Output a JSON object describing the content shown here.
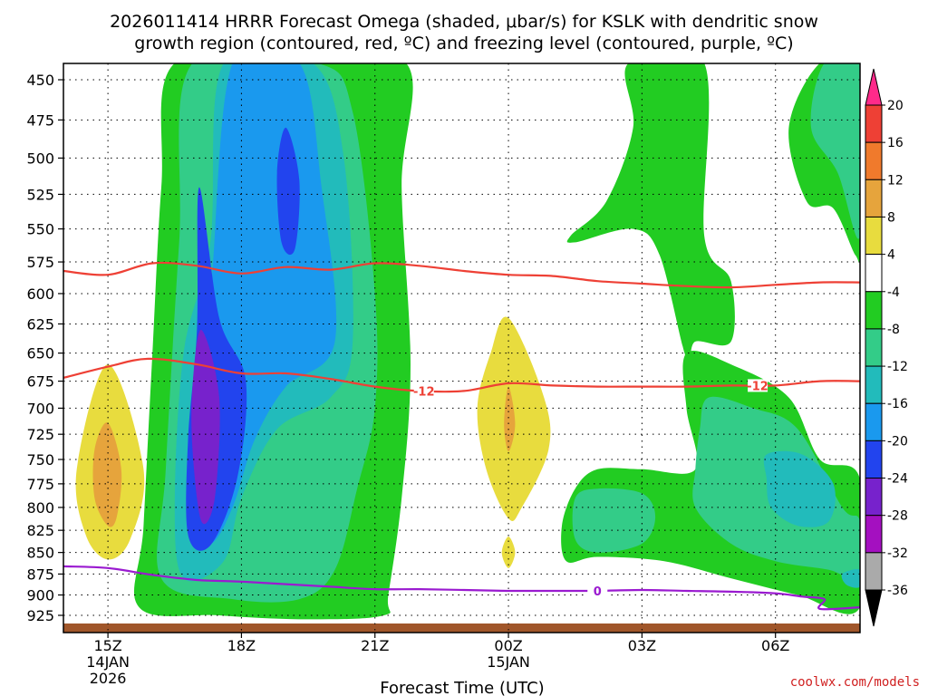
{
  "title_line1": "2026011414 HRRR Forecast Omega (shaded, μbar/s) for KSLK with dendritic snow",
  "title_line2": "growth region (contoured, red, ºC) and freezing level (contoured, purple, ºC)",
  "credit": "coolwx.com/models",
  "chart_data": {
    "type": "time-height contour",
    "xlabel": "Forecast Time (UTC)",
    "x_ticks": [
      {
        "label": "15Z",
        "sub1": "14JAN",
        "sub2": "2026",
        "hour": 15
      },
      {
        "label": "18Z",
        "sub1": "",
        "sub2": "",
        "hour": 18
      },
      {
        "label": "21Z",
        "sub1": "",
        "sub2": "",
        "hour": 21
      },
      {
        "label": "00Z",
        "sub1": "15JAN",
        "sub2": "",
        "hour": 24
      },
      {
        "label": "03Z",
        "sub1": "",
        "sub2": "",
        "hour": 27
      },
      {
        "label": "06Z",
        "sub1": "",
        "sub2": "",
        "hour": 30
      }
    ],
    "x_range_hours": [
      14.0,
      31.9
    ],
    "y_range_hPa": [
      440,
      937
    ],
    "y_ticks": [
      "450",
      "475",
      "500",
      "525",
      "550",
      "575",
      "600",
      "625",
      "650",
      "675",
      "700",
      "725",
      "750",
      "775",
      "800",
      "825",
      "850",
      "875",
      "900",
      "925"
    ],
    "grid": true,
    "colorbar": {
      "labels": [
        "20",
        "16",
        "12",
        "8",
        "4",
        "-4",
        "-8",
        "-12",
        "-16",
        "-20",
        "-24",
        "-28",
        "-32",
        "-36"
      ],
      "colors": [
        "#ff2a8a",
        "#ee4035",
        "#f07a2c",
        "#e6a43c",
        "#e8dc3e",
        "#ffffff",
        "#22cc22",
        "#33cc88",
        "#22bbbb",
        "#1a99ee",
        "#2244ee",
        "#7722cc",
        "#a410c0",
        "#aaaaaa",
        "#000000"
      ]
    },
    "contours": {
      "dgz_minus12": {
        "label": "-12",
        "color": "#ee4035",
        "points": [
          [
            14.0,
            672
          ],
          [
            15.0,
            662
          ],
          [
            15.9,
            655
          ],
          [
            17.0,
            660
          ],
          [
            18.0,
            668
          ],
          [
            19.0,
            668
          ],
          [
            20.0,
            673
          ],
          [
            21.0,
            680
          ],
          [
            22.0,
            684
          ],
          [
            23.0,
            684
          ],
          [
            24.0,
            677
          ],
          [
            25.0,
            679
          ],
          [
            26.0,
            680
          ],
          [
            27.0,
            680
          ],
          [
            28.0,
            680
          ],
          [
            29.0,
            679
          ],
          [
            30.0,
            679
          ],
          [
            31.0,
            675
          ],
          [
            31.9,
            675
          ]
        ]
      },
      "dgz_upper": {
        "color": "#ee4035",
        "points": [
          [
            14.0,
            582
          ],
          [
            15.0,
            585
          ],
          [
            16.0,
            576
          ],
          [
            17.0,
            578
          ],
          [
            18.0,
            584
          ],
          [
            19.0,
            579
          ],
          [
            20.0,
            581
          ],
          [
            21.0,
            576
          ],
          [
            22.0,
            578
          ],
          [
            23.0,
            582
          ],
          [
            24.0,
            585
          ],
          [
            25.0,
            586
          ],
          [
            26.0,
            590
          ],
          [
            27.0,
            592
          ],
          [
            28.0,
            594
          ],
          [
            29.0,
            595
          ],
          [
            30.0,
            593
          ],
          [
            31.0,
            591
          ],
          [
            31.9,
            591
          ]
        ]
      },
      "freezing_level": {
        "label": "0",
        "color": "#9a1ad0",
        "points": [
          [
            14.0,
            866
          ],
          [
            15.0,
            868
          ],
          [
            16.0,
            876
          ],
          [
            17.0,
            882
          ],
          [
            18.0,
            884
          ],
          [
            19.0,
            887
          ],
          [
            20.0,
            890
          ],
          [
            21.0,
            893
          ],
          [
            22.0,
            893
          ],
          [
            23.0,
            894
          ],
          [
            24.0,
            895
          ],
          [
            25.0,
            895
          ],
          [
            26.0,
            895
          ],
          [
            27.0,
            894
          ],
          [
            28.0,
            895
          ],
          [
            29.0,
            896
          ],
          [
            30.0,
            898
          ],
          [
            30.6,
            902
          ],
          [
            31.1,
            905
          ],
          [
            31.0,
            917
          ],
          [
            31.9,
            915
          ]
        ]
      }
    },
    "omega_regions": [
      {
        "level": -8,
        "color": "#22cc22",
        "points": [
          [
            16.5,
            440
          ],
          [
            19.2,
            440
          ],
          [
            21.7,
            440
          ],
          [
            21.6,
            520
          ],
          [
            21.8,
            660
          ],
          [
            21.6,
            790
          ],
          [
            21.3,
            900
          ],
          [
            21.2,
            925
          ],
          [
            19.5,
            930
          ],
          [
            17.5,
            925
          ],
          [
            15.7,
            915
          ],
          [
            15.8,
            820
          ],
          [
            16.0,
            650
          ],
          [
            16.2,
            520
          ]
        ]
      },
      {
        "level": -12,
        "color": "#33cc88",
        "points": [
          [
            16.9,
            440
          ],
          [
            19.7,
            440
          ],
          [
            20.5,
            470
          ],
          [
            21.0,
            600
          ],
          [
            21.0,
            700
          ],
          [
            20.6,
            780
          ],
          [
            20.1,
            870
          ],
          [
            19.3,
            905
          ],
          [
            17.8,
            905
          ],
          [
            16.2,
            880
          ],
          [
            16.3,
            760
          ],
          [
            16.6,
            560
          ]
        ]
      },
      {
        "level": -16,
        "color": "#22bbbb",
        "points": [
          [
            17.6,
            440
          ],
          [
            19.6,
            440
          ],
          [
            20.3,
            500
          ],
          [
            20.5,
            640
          ],
          [
            20.0,
            690
          ],
          [
            18.8,
            720
          ],
          [
            18.0,
            790
          ],
          [
            17.6,
            860
          ],
          [
            16.7,
            880
          ],
          [
            16.5,
            800
          ],
          [
            16.7,
            650
          ],
          [
            17.3,
            560
          ]
        ]
      },
      {
        "level": -20,
        "color": "#1a99ee",
        "points": [
          [
            17.8,
            440
          ],
          [
            19.3,
            440
          ],
          [
            19.8,
            520
          ],
          [
            20.1,
            640
          ],
          [
            19.0,
            680
          ],
          [
            18.3,
            730
          ],
          [
            17.8,
            800
          ],
          [
            17.3,
            840
          ],
          [
            16.8,
            810
          ],
          [
            16.9,
            690
          ],
          [
            17.3,
            600
          ]
        ]
      },
      {
        "level": -24,
        "color": "#2244ee",
        "points": [
          [
            17.05,
            520
          ],
          [
            17.5,
            620
          ],
          [
            18.1,
            675
          ],
          [
            17.9,
            770
          ],
          [
            17.3,
            842
          ],
          [
            16.8,
            830
          ],
          [
            16.8,
            730
          ],
          [
            17.0,
            630
          ]
        ]
      },
      {
        "level": -24,
        "color": "#2244ee",
        "points": [
          [
            19.0,
            480
          ],
          [
            19.3,
            515
          ],
          [
            19.2,
            565
          ],
          [
            18.9,
            560
          ],
          [
            18.8,
            510
          ]
        ]
      },
      {
        "level": -28,
        "color": "#7722cc",
        "points": [
          [
            17.1,
            630
          ],
          [
            17.5,
            690
          ],
          [
            17.4,
            790
          ],
          [
            17.1,
            815
          ],
          [
            16.9,
            740
          ],
          [
            16.9,
            680
          ]
        ]
      },
      {
        "level": 4,
        "color": "#e8dc3e",
        "points": [
          [
            15.0,
            660
          ],
          [
            15.8,
            760
          ],
          [
            15.5,
            835
          ],
          [
            15.0,
            858
          ],
          [
            14.5,
            830
          ],
          [
            14.3,
            760
          ]
        ]
      },
      {
        "level": 8,
        "color": "#e6a43c",
        "points": [
          [
            15.0,
            714
          ],
          [
            15.3,
            760
          ],
          [
            15.2,
            810
          ],
          [
            15.0,
            820
          ],
          [
            14.7,
            790
          ],
          [
            14.7,
            740
          ]
        ]
      },
      {
        "level": 4,
        "color": "#e8dc3e",
        "points": [
          [
            24.0,
            620
          ],
          [
            24.8,
            690
          ],
          [
            24.9,
            740
          ],
          [
            24.3,
            800
          ],
          [
            24.0,
            812
          ],
          [
            23.5,
            760
          ],
          [
            23.3,
            700
          ],
          [
            23.6,
            650
          ]
        ]
      },
      {
        "level": 8,
        "color": "#e6a43c",
        "points": [
          [
            24.0,
            680
          ],
          [
            24.15,
            715
          ],
          [
            24.0,
            742
          ],
          [
            23.9,
            715
          ]
        ]
      },
      {
        "level": 4,
        "color": "#e8dc3e",
        "points": [
          [
            24.0,
            832
          ],
          [
            24.15,
            850
          ],
          [
            24.0,
            868
          ],
          [
            23.85,
            850
          ]
        ]
      },
      {
        "level": -8,
        "color": "#22cc22",
        "points": [
          [
            26.7,
            440
          ],
          [
            28.4,
            440
          ],
          [
            28.4,
            555
          ],
          [
            29.0,
            590
          ],
          [
            29.0,
            640
          ],
          [
            28.2,
            640
          ],
          [
            28.0,
            655
          ],
          [
            27.4,
            570
          ],
          [
            26.8,
            550
          ],
          [
            25.5,
            560
          ],
          [
            25.4,
            555
          ],
          [
            26.2,
            530
          ],
          [
            26.8,
            480
          ]
        ]
      },
      {
        "level": -8,
        "color": "#22cc22",
        "points": [
          [
            31.0,
            440
          ],
          [
            31.9,
            440
          ],
          [
            31.9,
            560
          ],
          [
            31.8,
            570
          ],
          [
            31.3,
            535
          ],
          [
            30.7,
            530
          ],
          [
            30.3,
            480
          ]
        ]
      },
      {
        "level": -12,
        "color": "#33cc88",
        "points": [
          [
            31.1,
            440
          ],
          [
            31.9,
            440
          ],
          [
            31.9,
            555
          ],
          [
            31.4,
            510
          ],
          [
            30.8,
            480
          ]
        ]
      },
      {
        "level": -8,
        "color": "#22cc22",
        "points": [
          [
            28.0,
            650
          ],
          [
            29.0,
            660
          ],
          [
            30.3,
            690
          ],
          [
            31.0,
            750
          ],
          [
            31.9,
            770
          ],
          [
            31.9,
            915
          ],
          [
            30.5,
            900
          ],
          [
            29.0,
            880
          ],
          [
            27.5,
            860
          ],
          [
            26.0,
            855
          ],
          [
            25.3,
            860
          ],
          [
            25.2,
            820
          ],
          [
            25.5,
            780
          ],
          [
            26.0,
            760
          ],
          [
            27.0,
            760
          ],
          [
            28.2,
            760
          ],
          [
            28.0,
            700
          ]
        ]
      },
      {
        "level": -12,
        "color": "#33cc88",
        "points": [
          [
            28.5,
            690
          ],
          [
            29.5,
            700
          ],
          [
            30.5,
            720
          ],
          [
            31.5,
            800
          ],
          [
            31.9,
            815
          ],
          [
            31.9,
            880
          ],
          [
            31.2,
            870
          ],
          [
            30.0,
            860
          ],
          [
            29.0,
            840
          ],
          [
            28.2,
            800
          ],
          [
            28.2,
            760
          ],
          [
            28.3,
            720
          ]
        ]
      },
      {
        "level": -12,
        "color": "#33cc88",
        "points": [
          [
            25.5,
            790
          ],
          [
            26.0,
            780
          ],
          [
            27.0,
            785
          ],
          [
            27.3,
            810
          ],
          [
            27.0,
            840
          ],
          [
            26.0,
            850
          ],
          [
            25.5,
            835
          ]
        ]
      },
      {
        "level": -16,
        "color": "#22bbbb",
        "points": [
          [
            29.8,
            745
          ],
          [
            30.6,
            745
          ],
          [
            31.3,
            775
          ],
          [
            31.2,
            815
          ],
          [
            30.5,
            820
          ],
          [
            29.9,
            800
          ],
          [
            29.8,
            770
          ]
        ]
      },
      {
        "level": -16,
        "color": "#22bbbb",
        "points": [
          [
            31.5,
            875
          ],
          [
            31.9,
            870
          ],
          [
            31.9,
            890
          ],
          [
            31.6,
            888
          ]
        ]
      }
    ]
  }
}
